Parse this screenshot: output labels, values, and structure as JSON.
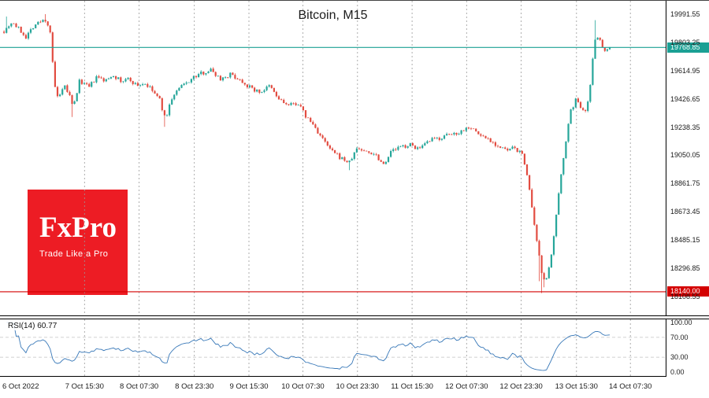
{
  "window": {
    "title": "Bitcoin, M15"
  },
  "logo": {
    "brand": "FxPro",
    "tagline": "Trade Like a Pro",
    "bg": "#ed1c24"
  },
  "overlays": {
    "bid_line": {
      "price": 19768.85,
      "label": "19768.85",
      "color": "#1ba094"
    },
    "support_line": {
      "price": 18140.0,
      "label": "18140.00",
      "color": "#d40000"
    }
  },
  "price_axis": {
    "labels": [
      "19991.55",
      "19803.25",
      "19614.95",
      "19426.65",
      "19238.35",
      "19050.05",
      "18861.75",
      "18673.45",
      "18485.15",
      "18296.85",
      "18108.55"
    ]
  },
  "rsi_pane": {
    "indicator": "RSI(14)",
    "value": "60.77",
    "levels": [
      "100.00",
      "70.00",
      "30.00",
      "0.00"
    ],
    "level_lines": [
      70,
      30
    ],
    "line_color": "#3878b8"
  },
  "time_axis": [
    {
      "label": "6 Oct 2022",
      "x": 0.006,
      "line": false
    },
    {
      "label": "7 Oct 15:30",
      "x": 0.127
    },
    {
      "label": "8 Oct 07:30",
      "x": 0.209
    },
    {
      "label": "8 Oct 23:30",
      "x": 0.292
    },
    {
      "label": "9 Oct 15:30",
      "x": 0.374
    },
    {
      "label": "10 Oct 07:30",
      "x": 0.455
    },
    {
      "label": "10 Oct 23:30",
      "x": 0.537
    },
    {
      "label": "11 Oct 15:30",
      "x": 0.619
    },
    {
      "label": "12 Oct 07:30",
      "x": 0.701
    },
    {
      "label": "12 Oct 23:30",
      "x": 0.783
    },
    {
      "label": "13 Oct 15:30",
      "x": 0.866
    },
    {
      "label": "14 Oct 07:30",
      "x": 0.947
    }
  ],
  "chart_data": {
    "type": "candlestick",
    "title": "Bitcoin, M15",
    "symbol": "Bitcoin",
    "timeframe": "M15",
    "x_range": [
      "6 Oct 2022",
      "14 Oct 07:30"
    ],
    "y_view": [
      17982,
      20080
    ],
    "last_price": 19768.85,
    "session_high": 19991.55,
    "session_low": 18131,
    "support_level": 18140.0,
    "up_color": "#26a69a",
    "down_color": "#e24c41",
    "grid": {
      "vertical": "dashed",
      "horizontal": "none"
    },
    "n_candles": 250,
    "seed": 7,
    "noise": 14,
    "wick": 10,
    "candle_region": [
      0.006,
      0.916
    ],
    "anchors": [
      [
        0.0,
        19880
      ],
      [
        0.013,
        19940
      ],
      [
        0.025,
        19890
      ],
      [
        0.036,
        19840
      ],
      [
        0.05,
        19920
      ],
      [
        0.068,
        19955
      ],
      [
        0.076,
        19890
      ],
      [
        0.083,
        19520
      ],
      [
        0.09,
        19420
      ],
      [
        0.1,
        19510
      ],
      [
        0.108,
        19450
      ],
      [
        0.114,
        19360
      ],
      [
        0.125,
        19550
      ],
      [
        0.14,
        19500
      ],
      [
        0.153,
        19570
      ],
      [
        0.168,
        19545
      ],
      [
        0.18,
        19590
      ],
      [
        0.193,
        19540
      ],
      [
        0.206,
        19560
      ],
      [
        0.219,
        19515
      ],
      [
        0.232,
        19530
      ],
      [
        0.245,
        19480
      ],
      [
        0.257,
        19420
      ],
      [
        0.266,
        19290
      ],
      [
        0.277,
        19430
      ],
      [
        0.29,
        19500
      ],
      [
        0.31,
        19560
      ],
      [
        0.327,
        19600
      ],
      [
        0.342,
        19620
      ],
      [
        0.357,
        19560
      ],
      [
        0.374,
        19590
      ],
      [
        0.391,
        19550
      ],
      [
        0.407,
        19500
      ],
      [
        0.422,
        19470
      ],
      [
        0.439,
        19510
      ],
      [
        0.452,
        19430
      ],
      [
        0.469,
        19380
      ],
      [
        0.485,
        19400
      ],
      [
        0.498,
        19310
      ],
      [
        0.511,
        19250
      ],
      [
        0.527,
        19150
      ],
      [
        0.54,
        19080
      ],
      [
        0.553,
        19040
      ],
      [
        0.57,
        19000
      ],
      [
        0.583,
        19100
      ],
      [
        0.596,
        19075
      ],
      [
        0.613,
        19060
      ],
      [
        0.626,
        18990
      ],
      [
        0.64,
        19080
      ],
      [
        0.655,
        19105
      ],
      [
        0.67,
        19120
      ],
      [
        0.687,
        19090
      ],
      [
        0.704,
        19150
      ],
      [
        0.72,
        19165
      ],
      [
        0.735,
        19185
      ],
      [
        0.752,
        19205
      ],
      [
        0.769,
        19245
      ],
      [
        0.785,
        19185
      ],
      [
        0.8,
        19160
      ],
      [
        0.817,
        19105
      ],
      [
        0.83,
        19080
      ],
      [
        0.843,
        19100
      ],
      [
        0.856,
        19050
      ],
      [
        0.865,
        18900
      ],
      [
        0.873,
        18640
      ],
      [
        0.881,
        18430
      ],
      [
        0.889,
        18240
      ],
      [
        0.895,
        18230
      ],
      [
        0.902,
        18320
      ],
      [
        0.908,
        18520
      ],
      [
        0.915,
        18760
      ],
      [
        0.921,
        18970
      ],
      [
        0.928,
        19160
      ],
      [
        0.936,
        19350
      ],
      [
        0.944,
        19420
      ],
      [
        0.951,
        19380
      ],
      [
        0.959,
        19350
      ],
      [
        0.966,
        19430
      ],
      [
        0.972,
        19700
      ],
      [
        0.977,
        19870
      ],
      [
        0.984,
        19810
      ],
      [
        0.99,
        19755
      ],
      [
        1.0,
        19768.85
      ]
    ],
    "wick_events": [
      {
        "t": 0.004,
        "high": 19975
      },
      {
        "t": 0.068,
        "high": 19991
      },
      {
        "t": 0.114,
        "low": 19305
      },
      {
        "t": 0.266,
        "low": 19240
      },
      {
        "t": 0.57,
        "low": 18950
      },
      {
        "t": 0.885,
        "low": 18210
      },
      {
        "t": 0.889,
        "low": 18131
      },
      {
        "t": 0.893,
        "low": 18170
      },
      {
        "t": 0.977,
        "high": 19951
      }
    ],
    "indicator": {
      "name": "RSI",
      "period": 14,
      "current": 60.77,
      "levels": [
        100,
        70,
        30,
        0
      ]
    }
  }
}
